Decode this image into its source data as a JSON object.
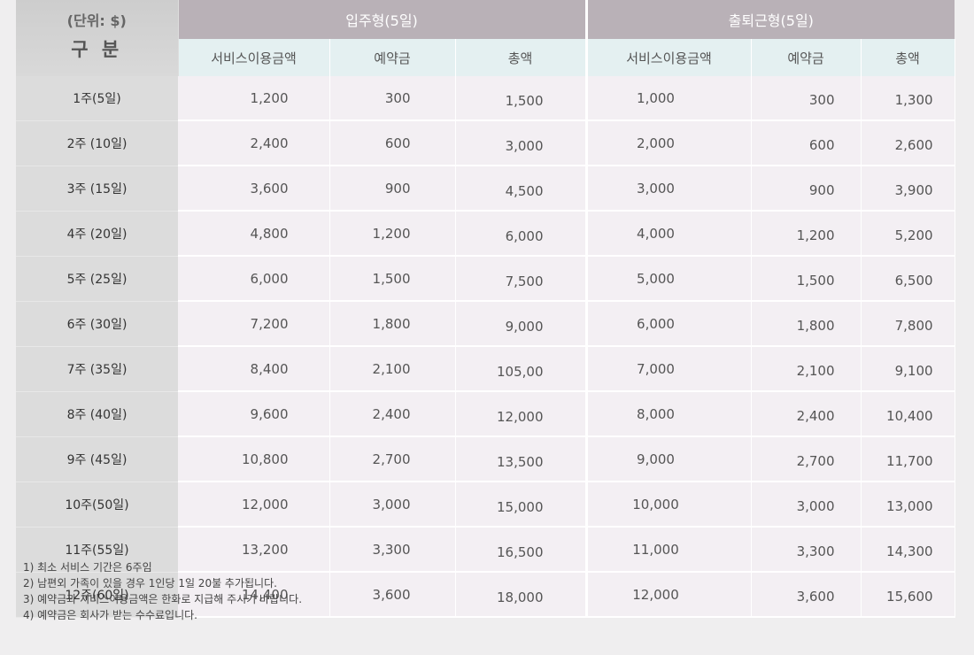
{
  "header": {
    "unit": "(단위: $)",
    "category": "구 분",
    "group_live_in": "입주형(5일)",
    "group_commute": "출퇴근형(5일)",
    "columns": [
      "서비스이용금액",
      "예약금",
      "총액",
      "서비스이용금액",
      "예약금",
      "총액"
    ]
  },
  "rows": [
    {
      "label": "1주(5일)",
      "values": [
        "1,200",
        "300",
        "1,500",
        "1,000",
        "300",
        "1,300"
      ]
    },
    {
      "label": "2주 (10일)",
      "values": [
        "2,400",
        "600",
        "3,000",
        "2,000",
        "600",
        "2,600"
      ]
    },
    {
      "label": "3주 (15일)",
      "values": [
        "3,600",
        "900",
        "4,500",
        "3,000",
        "900",
        "3,900"
      ]
    },
    {
      "label": "4주 (20일)",
      "values": [
        "4,800",
        "1,200",
        "6,000",
        "4,000",
        "1,200",
        "5,200"
      ]
    },
    {
      "label": "5주 (25일)",
      "values": [
        "6,000",
        "1,500",
        "7,500",
        "5,000",
        "1,500",
        "6,500"
      ]
    },
    {
      "label": "6주 (30일)",
      "values": [
        "7,200",
        "1,800",
        "9,000",
        "6,000",
        "1,800",
        "7,800"
      ]
    },
    {
      "label": "7주 (35일)",
      "values": [
        "8,400",
        "2,100",
        "105,00",
        "7,000",
        "2,100",
        "9,100"
      ]
    },
    {
      "label": "8주 (40일)",
      "values": [
        "9,600",
        "2,400",
        "12,000",
        "8,000",
        "2,400",
        "10,400"
      ]
    },
    {
      "label": "9주 (45일)",
      "values": [
        "10,800",
        "2,700",
        "13,500",
        "9,000",
        "2,700",
        "11,700"
      ]
    },
    {
      "label": "10주(50일)",
      "values": [
        "12,000",
        "3,000",
        "15,000",
        "10,000",
        "3,000",
        "13,000"
      ]
    },
    {
      "label": "11주(55일)",
      "values": [
        "13,200",
        "3,300",
        "16,500",
        "11,000",
        "3,300",
        "14,300"
      ]
    },
    {
      "label": "12주(60일)",
      "values": [
        "14,400",
        "3,600",
        "18,000",
        "12,000",
        "3,600",
        "15,600"
      ]
    }
  ],
  "notes": [
    "1) 최소 서비스 기간은 6주임",
    "2) 남편외 가족이 있을 경우 1인당 1일 20불 추가됩니다.",
    "3) 예약금과 서비스이용금액은 한화로 지급해 주시기 바랍니다.",
    "4) 예약금은 회사가 받는 수수료입니다."
  ]
}
